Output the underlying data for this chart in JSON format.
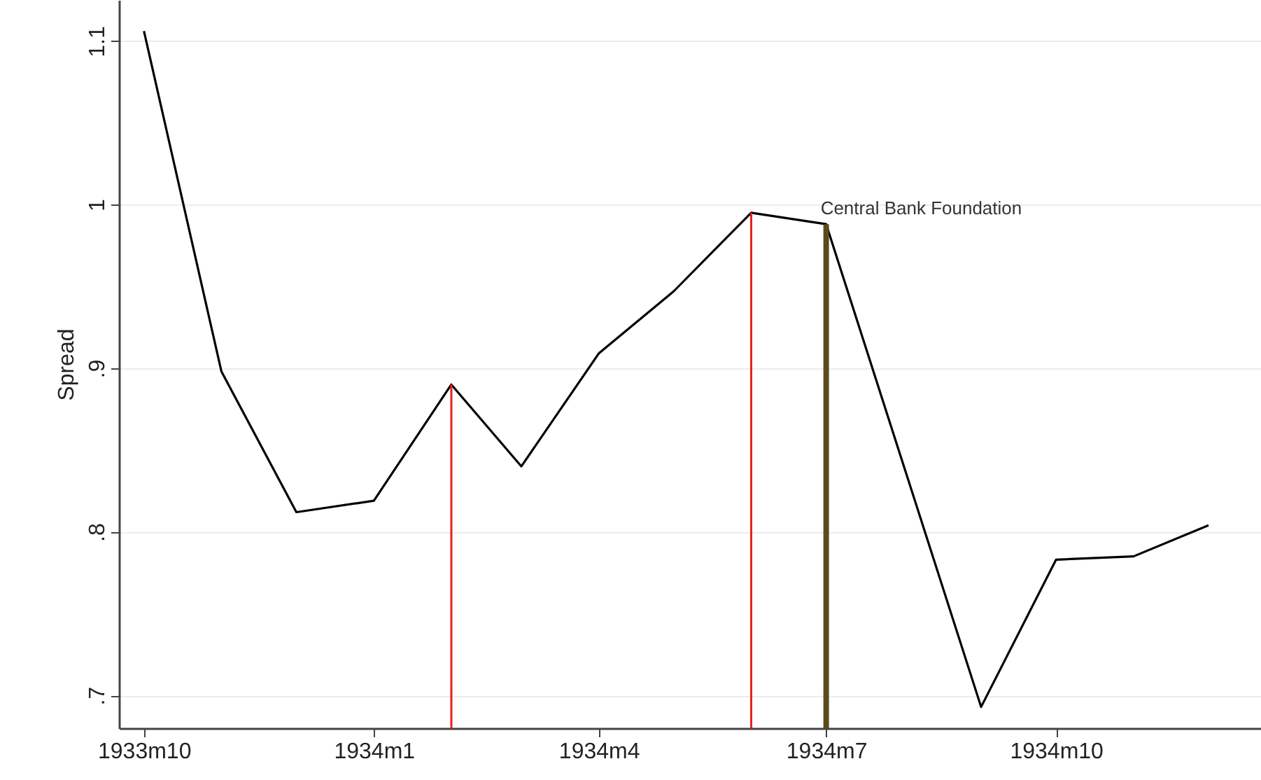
{
  "chart_data": {
    "type": "line",
    "ylabel": "Spread",
    "x": [
      "1933-10",
      "1933-11",
      "1933-12",
      "1934-01",
      "1934-02",
      "1934-03",
      "1934-04",
      "1934-05",
      "1934-06",
      "1934-07",
      "1934-09",
      "1934-10",
      "1934-11",
      "1934-12"
    ],
    "series": [
      {
        "color": "#000000",
        "values": [
          1.106,
          0.898,
          0.812,
          0.819,
          0.89,
          0.84,
          0.909,
          0.947,
          0.995,
          0.988,
          0.693,
          0.783,
          0.785,
          0.804
        ]
      }
    ],
    "xlim": [
      "1933-09-21",
      "1934-12-22"
    ],
    "xticks": [
      {
        "value": "1933-10",
        "label": "1933m10"
      },
      {
        "value": "1934-01",
        "label": "1934m1"
      },
      {
        "value": "1934-04",
        "label": "1934m4"
      },
      {
        "value": "1934-07",
        "label": "1934m7"
      },
      {
        "value": "1934-10",
        "label": "1934m10"
      }
    ],
    "ylim": [
      0.68,
      1.125
    ],
    "yticks": [
      {
        "value": 0.7,
        "label": ".7"
      },
      {
        "value": 0.8,
        "label": ".8"
      },
      {
        "value": 0.9,
        "label": ".9"
      },
      {
        "value": 1,
        "label": "1"
      },
      {
        "value": 1.1,
        "label": "1.1"
      }
    ],
    "ref_lines": [
      {
        "axis": "x",
        "value": "1934-02",
        "color": "#e8201e"
      },
      {
        "axis": "x",
        "value": "1934-06",
        "color": "#e8201e"
      },
      {
        "axis": "x",
        "value": "1934-07",
        "color": "#5a4a1c",
        "label": "Central Bank Foundation"
      }
    ],
    "grid": "y",
    "marker": "none",
    "line_style": "solid"
  }
}
